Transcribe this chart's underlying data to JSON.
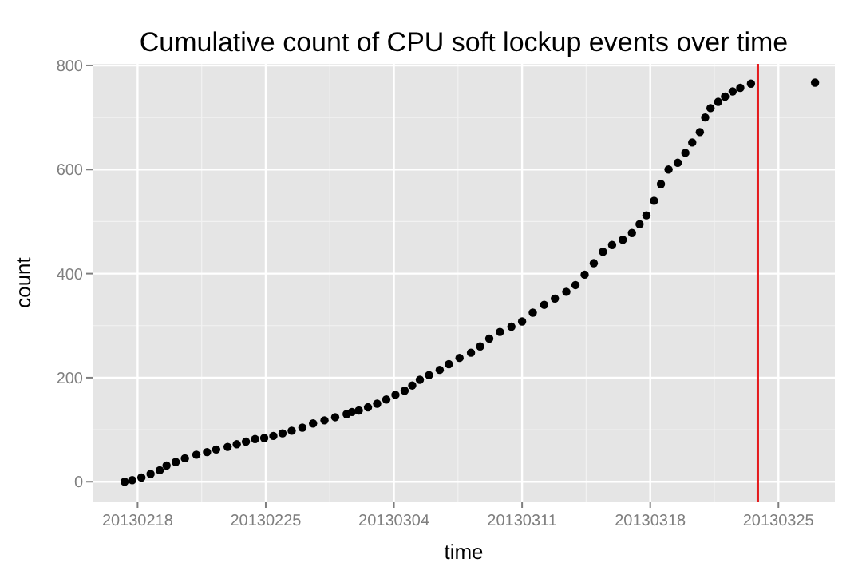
{
  "chart_data": {
    "type": "scatter",
    "title": "Cumulative count of CPU soft lockup events over time",
    "xlabel": "time",
    "ylabel": "count",
    "xlim": [
      "2013-02-15T13:00",
      "2013-03-28T02:00"
    ],
    "ylim": [
      -38,
      803
    ],
    "xticks": [
      {
        "value": "2013-02-18",
        "label": "20130218"
      },
      {
        "value": "2013-02-25",
        "label": "20130225"
      },
      {
        "value": "2013-03-04",
        "label": "20130304"
      },
      {
        "value": "2013-03-11",
        "label": "20130311"
      },
      {
        "value": "2013-03-18",
        "label": "20130318"
      },
      {
        "value": "2013-03-25",
        "label": "20130325"
      }
    ],
    "yticks": [
      0,
      200,
      400,
      600,
      800
    ],
    "grid": true,
    "marker": "circle",
    "ref_lines": [
      {
        "axis": "x",
        "value": "2013-03-23T21:00",
        "color": "#e41a1c"
      }
    ],
    "series": [
      {
        "color": "#000000",
        "x": [
          "2013-02-17T07:00",
          "2013-02-17T17:00",
          "2013-02-18T05:00",
          "2013-02-18T17:00",
          "2013-02-19T05:00",
          "2013-02-19T14:00",
          "2013-02-20T02:00",
          "2013-02-20T14:00",
          "2013-02-21T05:00",
          "2013-02-21T19:00",
          "2013-02-22T07:00",
          "2013-02-22T22:00",
          "2013-02-23T10:00",
          "2013-02-23T22:00",
          "2013-02-24T10:00",
          "2013-02-24T22:00",
          "2013-02-25T10:00",
          "2013-02-25T22:00",
          "2013-02-26T10:00",
          "2013-02-27T00:00",
          "2013-02-27T14:00",
          "2013-02-28T05:00",
          "2013-02-28T19:00",
          "2013-03-01T10:00",
          "2013-03-01T17:00",
          "2013-03-02T02:00",
          "2013-03-02T14:00",
          "2013-03-03T02:00",
          "2013-03-03T14:00",
          "2013-03-04T02:00",
          "2013-03-04T14:00",
          "2013-03-05T00:00",
          "2013-03-05T10:00",
          "2013-03-05T22:00",
          "2013-03-06T12:00",
          "2013-03-07T00:00",
          "2013-03-07T14:00",
          "2013-03-08T05:00",
          "2013-03-08T17:00",
          "2013-03-09T05:00",
          "2013-03-09T19:00",
          "2013-03-10T10:00",
          "2013-03-11T00:00",
          "2013-03-11T14:00",
          "2013-03-12T05:00",
          "2013-03-12T19:00",
          "2013-03-13T10:00",
          "2013-03-13T22:00",
          "2013-03-14T10:00",
          "2013-03-14T22:00",
          "2013-03-15T10:00",
          "2013-03-15T22:00",
          "2013-03-16T12:00",
          "2013-03-17T00:00",
          "2013-03-17T10:00",
          "2013-03-17T19:00",
          "2013-03-18T05:00",
          "2013-03-18T14:00",
          "2013-03-19T00:00",
          "2013-03-19T12:00",
          "2013-03-19T22:00",
          "2013-03-20T07:00",
          "2013-03-20T17:00",
          "2013-03-21T00:00",
          "2013-03-21T07:00",
          "2013-03-21T17:00",
          "2013-03-22T02:00",
          "2013-03-22T12:00",
          "2013-03-22T22:00",
          "2013-03-23T12:00",
          "2013-03-27T00:00"
        ],
        "values": [
          0,
          3,
          8,
          15,
          22,
          31,
          38,
          45,
          52,
          57,
          62,
          67,
          72,
          77,
          82,
          84,
          88,
          93,
          98,
          104,
          112,
          118,
          124,
          130,
          134,
          137,
          143,
          150,
          158,
          167,
          175,
          185,
          196,
          205,
          215,
          226,
          238,
          248,
          260,
          275,
          288,
          298,
          308,
          325,
          340,
          352,
          365,
          378,
          398,
          420,
          442,
          455,
          465,
          478,
          495,
          512,
          540,
          572,
          600,
          613,
          632,
          652,
          672,
          700,
          718,
          730,
          740,
          750,
          757,
          765,
          767
        ]
      }
    ]
  }
}
